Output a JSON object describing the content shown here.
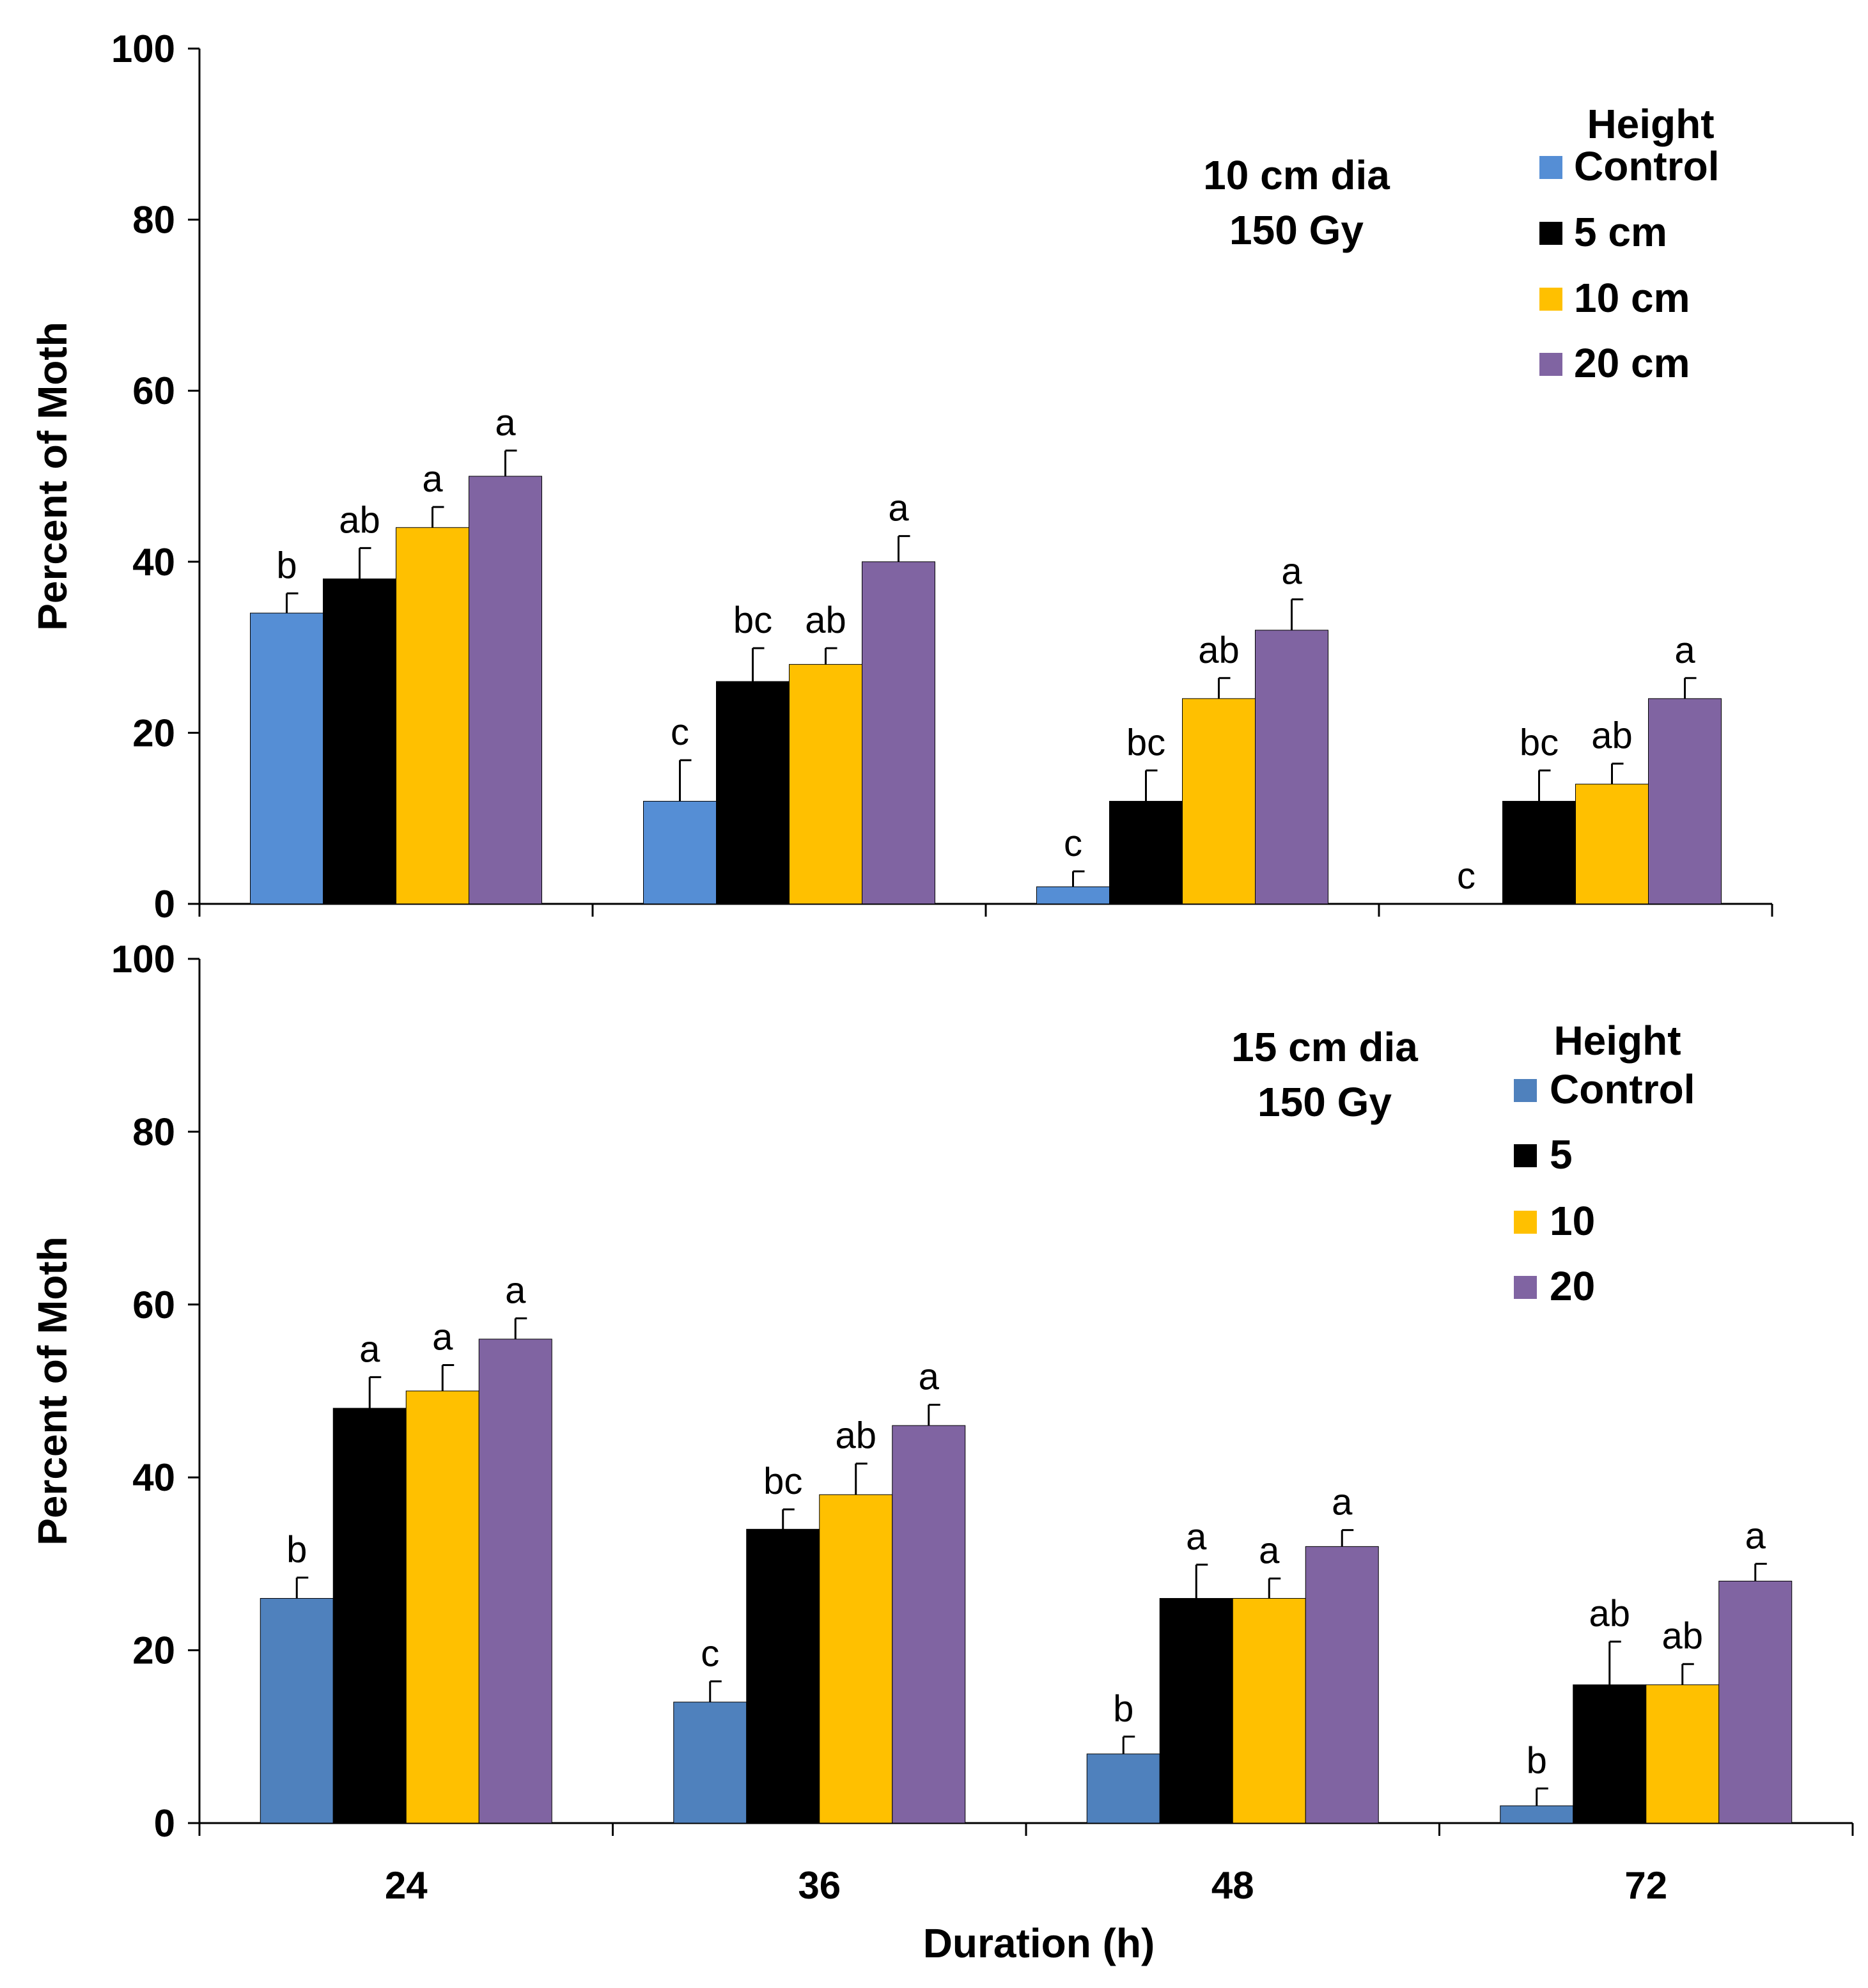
{
  "chart_data": [
    {
      "type": "bar",
      "panel": "top",
      "annotation": [
        "10 cm dia",
        "150 Gy"
      ],
      "ylabel": "Percent of  Moth",
      "xlabel": "",
      "ylim": [
        0,
        100
      ],
      "yticks": [
        0,
        20,
        40,
        60,
        80,
        100
      ],
      "categories": [
        "24",
        "36",
        "48",
        "72"
      ],
      "show_category_labels": false,
      "legend_title": "Height",
      "legend_position": "top-right",
      "series": [
        {
          "name": "Control",
          "color": "#558ED5",
          "values": [
            34,
            12,
            2,
            0
          ],
          "errors": [
            2.3,
            4.8,
            1.8,
            0
          ],
          "letters": [
            "b",
            "c",
            "c",
            "c"
          ]
        },
        {
          "name": "5 cm",
          "color": "#000000",
          "values": [
            38,
            26,
            12,
            12
          ],
          "errors": [
            3.6,
            3.9,
            3.6,
            3.6
          ],
          "letters": [
            "ab",
            "bc",
            "bc",
            "bc"
          ]
        },
        {
          "name": "10 cm",
          "color": "#FFC000",
          "values": [
            44,
            28,
            24,
            14
          ],
          "errors": [
            2.4,
            1.9,
            2.4,
            2.4
          ],
          "letters": [
            "a",
            "ab",
            "ab",
            "ab"
          ]
        },
        {
          "name": "20 cm",
          "color": "#8064A2",
          "values": [
            50,
            40,
            32,
            24
          ],
          "errors": [
            3.0,
            3.0,
            3.6,
            2.4
          ],
          "letters": [
            "a",
            "a",
            "a",
            "a"
          ]
        }
      ]
    },
    {
      "type": "bar",
      "panel": "bottom",
      "annotation": [
        "15 cm dia",
        "150 Gy"
      ],
      "ylabel": "Percent of  Moth",
      "xlabel": "Duration (h)",
      "ylim": [
        0,
        100
      ],
      "yticks": [
        0,
        20,
        40,
        60,
        80,
        100
      ],
      "categories": [
        "24",
        "36",
        "48",
        "72"
      ],
      "show_category_labels": true,
      "legend_title": "Height",
      "legend_position": "top-right",
      "series": [
        {
          "name": "Control",
          "color": "#4F81BD",
          "values": [
            26,
            14,
            8,
            2
          ],
          "errors": [
            2.4,
            2.4,
            2.0,
            2.0
          ],
          "letters": [
            "b",
            "c",
            "b",
            "b"
          ]
        },
        {
          "name": "5",
          "color": "#000000",
          "values": [
            48,
            34,
            26,
            16
          ],
          "errors": [
            3.6,
            2.3,
            3.9,
            5.0
          ],
          "letters": [
            "a",
            "bc",
            "a",
            "ab"
          ]
        },
        {
          "name": "10",
          "color": "#FFC000",
          "values": [
            50,
            38,
            26,
            16
          ],
          "errors": [
            3.0,
            3.6,
            2.3,
            2.4
          ],
          "letters": [
            "a",
            "ab",
            "a",
            "ab"
          ]
        },
        {
          "name": "20",
          "color": "#8064A2",
          "values": [
            56,
            46,
            32,
            28
          ],
          "errors": [
            2.4,
            2.4,
            1.9,
            2.0
          ],
          "letters": [
            "a",
            "a",
            "a",
            "a"
          ]
        }
      ]
    }
  ]
}
